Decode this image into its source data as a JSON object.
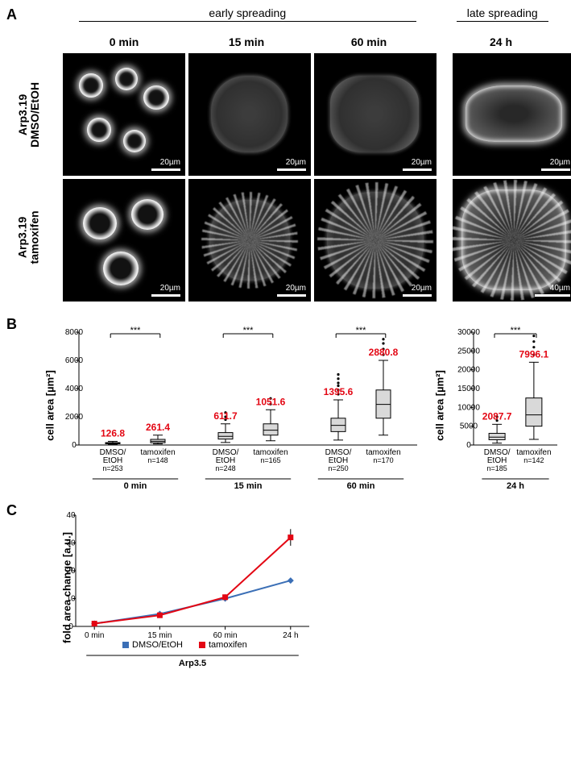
{
  "panelA": {
    "group_labels": {
      "early": "early spreading",
      "late": "late spreading"
    },
    "timepoints": [
      "0 min",
      "15 min",
      "60 min",
      "24 h"
    ],
    "rows": [
      {
        "line1": "Arp3.19",
        "line2": "DMSO/EtOH"
      },
      {
        "line1": "Arp3.19",
        "line2": "tamoxifen"
      }
    ],
    "scalebar_default": "20µm",
    "scalebar_last": "40µm"
  },
  "panelB": {
    "ylabel": "cell area [µm²]",
    "early": {
      "ylim": [
        0,
        8000
      ],
      "ytick_step": 2000,
      "groups": [
        {
          "time": "0 min",
          "boxes": [
            {
              "label": "DMSO/\nEtOH",
              "n": "n=253",
              "median_txt": "126.8",
              "q1": 90,
              "q3": 170,
              "med": 127,
              "lo": 60,
              "hi": 260
            },
            {
              "label": "tamoxifen",
              "n": "n=148",
              "median_txt": "261.4",
              "q1": 160,
              "q3": 400,
              "med": 261,
              "lo": 80,
              "hi": 700
            }
          ],
          "sig": "***"
        },
        {
          "time": "15 min",
          "boxes": [
            {
              "label": "DMSO/\nEtOH",
              "n": "n=248",
              "median_txt": "611.7",
              "q1": 420,
              "q3": 880,
              "med": 612,
              "lo": 180,
              "hi": 1500,
              "outliers": [
                1800,
                2000,
                2300
              ]
            },
            {
              "label": "tamoxifen",
              "n": "n=165",
              "median_txt": "1051.6",
              "q1": 700,
              "q3": 1500,
              "med": 1052,
              "lo": 300,
              "hi": 2500,
              "outliers": [
                2900,
                3300
              ]
            }
          ],
          "sig": "***"
        },
        {
          "time": "60 min",
          "boxes": [
            {
              "label": "DMSO/\nEtOH",
              "n": "n=250",
              "median_txt": "1395.6",
              "q1": 950,
              "q3": 1900,
              "med": 1396,
              "lo": 350,
              "hi": 3200,
              "outliers": [
                3600,
                3900,
                4200,
                4400,
                4700,
                5000
              ]
            },
            {
              "label": "tamoxifen",
              "n": "n=170",
              "median_txt": "2880.8",
              "q1": 1900,
              "q3": 3900,
              "med": 2881,
              "lo": 700,
              "hi": 6000,
              "outliers": [
                6400,
                6800,
                7200,
                7500
              ]
            }
          ],
          "sig": "***"
        }
      ]
    },
    "late": {
      "ylim": [
        0,
        30000
      ],
      "ytick_step": 5000,
      "time": "24 h",
      "sig": "***",
      "boxes": [
        {
          "label": "DMSO/\nEtOH",
          "n": "n=185",
          "median_txt": "2087.7",
          "q1": 1400,
          "q3": 3100,
          "med": 2088,
          "lo": 500,
          "hi": 5500,
          "outliers": [
            6500,
            7500
          ]
        },
        {
          "label": "tamoxifen",
          "n": "n=142",
          "median_txt": "7996.1",
          "q1": 5000,
          "q3": 12500,
          "med": 7996,
          "lo": 1500,
          "hi": 22000,
          "outliers": [
            24000,
            26000,
            27500,
            29000
          ]
        }
      ]
    }
  },
  "panelC": {
    "ylabel": "fold area change [a.u.]",
    "xticks": [
      "0 min",
      "15 min",
      "60 min",
      "24 h"
    ],
    "group_label": "Arp3.5",
    "ylim": [
      0,
      40
    ],
    "ytick_step": 10,
    "series": [
      {
        "name": "DMSO/EtOH",
        "color": "#3b6fb6",
        "y": [
          1,
          4.5,
          10,
          16.5
        ],
        "err": [
          0.3,
          0.7,
          0.9,
          0.8
        ]
      },
      {
        "name": "tamoxifen",
        "color": "#e30613",
        "y": [
          1,
          4.0,
          10.5,
          32
        ],
        "err": [
          0.3,
          0.7,
          1.0,
          3.0
        ]
      }
    ],
    "legend": [
      "DMSO/EtOH",
      "tamoxifen"
    ]
  },
  "labels": {
    "A": "A",
    "B": "B",
    "C": "C"
  }
}
